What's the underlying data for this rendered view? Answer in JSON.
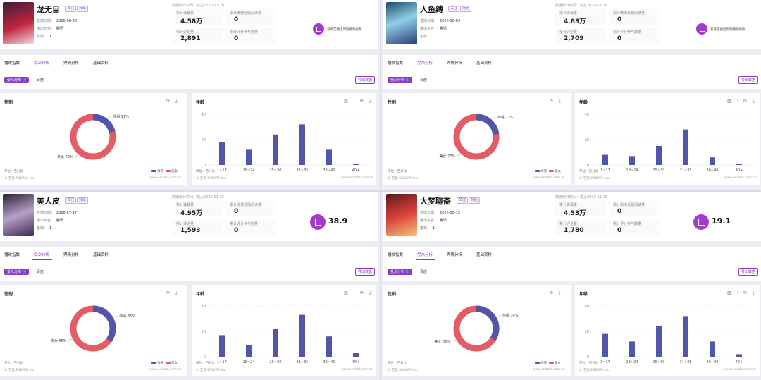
{
  "colors": {
    "accent": "#8a3cc8",
    "male": "#5156a8",
    "female": "#e45c64",
    "heat": "#a53ad0"
  },
  "common": {
    "follow_tag": "关注",
    "compare_tag": "对比",
    "release_label": "首播日期：",
    "platform_label": "播出平台：",
    "episodes_label": "集数：",
    "stat_labels": [
      "累计弹幕量",
      "累计微博话题阅读量",
      "累计评论量",
      "累计评分参与数量"
    ],
    "heat_label": "爱奇艺播出周期播映指数",
    "tabs": [
      "播映指数",
      "受众分析",
      "舆情分析",
      "基础资料"
    ],
    "subtab_active": "受众分布 ⓘ",
    "subtab_other": "百度",
    "export_label": "导出数据",
    "gender_title": "性别",
    "age_title": "年龄",
    "gender_tools": "⟳ ⤓",
    "age_tools": "▥ ⫶ ⟳ ⤓",
    "unit": "单位：百分比",
    "copyright": "© 艺恩 ENDATA Inc.",
    "site": "www.endata.com.cn",
    "legend_male": "帅哥",
    "legend_female": "美女",
    "age_categories": [
      "1~17",
      "18~24",
      "25~30",
      "31~35",
      "36~40",
      "40+"
    ],
    "age_yticks": [
      "40",
      "20",
      "0"
    ]
  },
  "panels": [
    {
      "title": "龙无目",
      "deadline": "数据统计时间：截止2020-11-26",
      "release_date": "2020-06-26",
      "platform": "腾讯",
      "episodes": "1",
      "stats": [
        "4.58万",
        "0",
        "2,891",
        "0"
      ],
      "heat_value": "",
      "gender": {
        "male_label": "帅哥 21%",
        "female_label": "美女 79%",
        "male_pct": 21
      },
      "age_values": [
        18,
        12,
        24,
        32,
        12,
        1
      ]
    },
    {
      "title": "人鱼缚",
      "deadline": "数据统计时间：截止2020-11-26",
      "release_date": "2020-10-03",
      "platform": "腾讯",
      "episodes": "",
      "stats": [
        "4.63万",
        "0",
        "2,709",
        "0"
      ],
      "heat_value": "",
      "gender": {
        "male_label": "帅哥 23%",
        "female_label": "美女 77%",
        "male_pct": 23
      },
      "age_values": [
        8,
        7,
        15,
        28,
        6,
        1
      ]
    },
    {
      "title": "美人皮",
      "deadline": "数据统计时间：截止2020-11-26",
      "release_date": "2020-07-17",
      "platform": "腾讯",
      "episodes": "1",
      "stats": [
        "4.95万",
        "0",
        "1,593",
        "0"
      ],
      "heat_value": "38.9",
      "gender": {
        "male_label": "帅哥 35%",
        "female_label": "美女 65%",
        "male_pct": 35
      },
      "age_values": [
        17,
        9,
        22,
        33,
        16,
        3
      ]
    },
    {
      "title": "大梦聊斋",
      "deadline": "数据统计时间：截止2020-11-26",
      "release_date": "2020-08-15",
      "platform": "腾讯",
      "episodes": "1",
      "stats": [
        "4.53万",
        "0",
        "1,780",
        "0"
      ],
      "heat_value": "19.1",
      "gender": {
        "male_label": "帅哥 34%",
        "female_label": "美女 66%",
        "male_pct": 34
      },
      "age_values": [
        18,
        12,
        24,
        32,
        12,
        2
      ]
    }
  ]
}
